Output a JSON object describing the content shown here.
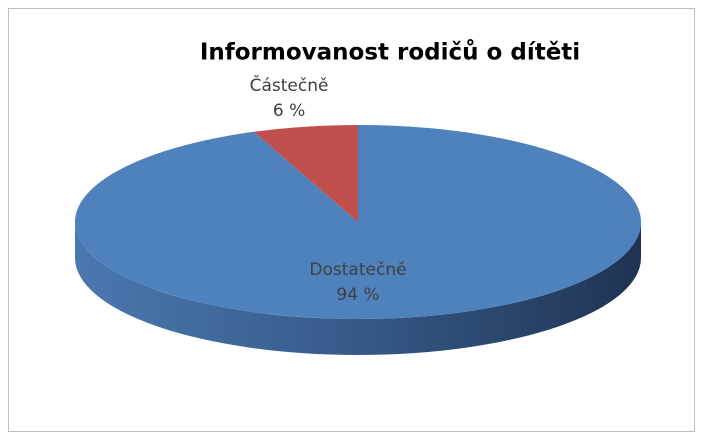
{
  "chart_data": {
    "type": "pie",
    "title": "Informovanost rodičů o dítěti",
    "categories": [
      "Dostatečně",
      "Částečně"
    ],
    "values": [
      94,
      6
    ],
    "value_labels": [
      "94 %",
      "6 %"
    ],
    "colors": [
      "#4f81bd",
      "#c0504d"
    ]
  }
}
